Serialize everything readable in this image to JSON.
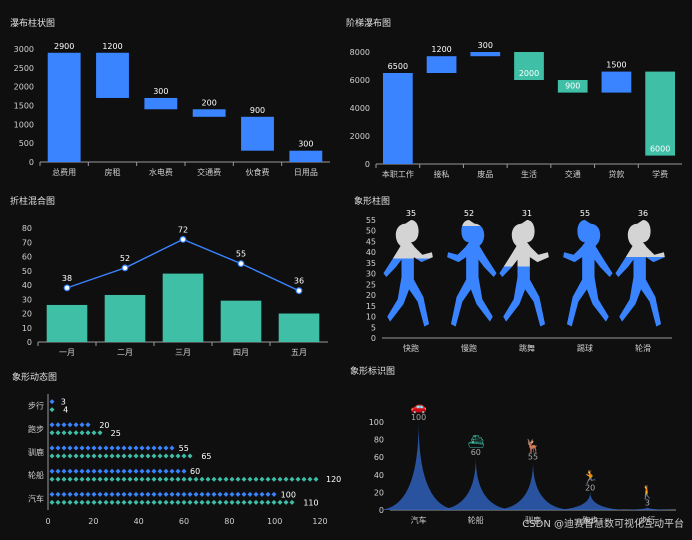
{
  "watermark": "CSDN @迪赛智慧数可视化互动平台",
  "chart_data": [
    {
      "type": "bar",
      "title": "瀑布柱状图",
      "categories": [
        "总费用",
        "房租",
        "水电费",
        "交通费",
        "伙食费",
        "日用品"
      ],
      "values": [
        2900,
        1200,
        300,
        200,
        900,
        300
      ],
      "bases": [
        0,
        1700,
        1400,
        1200,
        300,
        0
      ],
      "ylim": [
        0,
        3000
      ],
      "yticks": [
        0,
        500,
        1000,
        1500,
        2000,
        2500,
        3000
      ],
      "color": "#3a84ff"
    },
    {
      "type": "bar",
      "title": "阶梯瀑布图",
      "categories": [
        "本职工作",
        "接私",
        "废品",
        "生活",
        "交通",
        "贷款",
        "学费"
      ],
      "values": [
        6500,
        1200,
        300,
        2000,
        900,
        1500,
        6000
      ],
      "bases": [
        0,
        6500,
        7700,
        6000,
        5100,
        5100,
        600
      ],
      "colors": [
        "#3a84ff",
        "#3a84ff",
        "#3a84ff",
        "#3fbfa6",
        "#3fbfa6",
        "#3a84ff",
        "#3fbfa6"
      ],
      "ylim": [
        0,
        8000
      ],
      "yticks": [
        0,
        2000,
        4000,
        6000,
        8000
      ]
    },
    {
      "type": "bar",
      "title": "折柱混合图",
      "categories": [
        "一月",
        "二月",
        "三月",
        "四月",
        "五月"
      ],
      "bar_values": [
        26,
        33,
        48,
        29,
        20
      ],
      "line_values": [
        38,
        52,
        72,
        55,
        36
      ],
      "ylim": [
        0,
        80
      ],
      "yticks": [
        0,
        10,
        20,
        30,
        40,
        50,
        60,
        70,
        80
      ],
      "bar_color": "#3fbfa6",
      "line_color": "#3a84ff"
    },
    {
      "type": "bar",
      "title": "象形柱图",
      "categories": [
        "快跑",
        "慢跑",
        "跳舞",
        "踢球",
        "轮滑"
      ],
      "values": [
        35,
        52,
        31,
        55,
        36
      ],
      "ylim": [
        0,
        55
      ],
      "yticks": [
        0,
        5,
        10,
        15,
        20,
        25,
        30,
        35,
        40,
        45,
        50,
        55
      ],
      "fill_color": "#3a84ff",
      "empty_color": "#d4d4d4"
    },
    {
      "type": "bar",
      "title": "象形动态图",
      "categories": [
        "汽车",
        "轮船",
        "驯鹿",
        "跑步",
        "步行"
      ],
      "series": [
        {
          "values": [
            100,
            60,
            55,
            20,
            3
          ],
          "color": "#3a84ff"
        },
        {
          "values": [
            110,
            120,
            65,
            25,
            4
          ],
          "color": "#3fbfa6"
        }
      ],
      "xlim": [
        0,
        120
      ],
      "xticks": [
        0,
        20,
        40,
        60,
        80,
        100,
        120
      ]
    },
    {
      "type": "area",
      "title": "象形标识图",
      "categories": [
        "汽车",
        "轮船",
        "驯鹿",
        "跑步",
        "步行"
      ],
      "values": [
        100,
        60,
        55,
        20,
        3
      ],
      "ylim": [
        0,
        100
      ],
      "yticks": [
        0,
        20,
        40,
        60,
        80,
        100
      ],
      "icons": [
        "car-icon",
        "ship-icon",
        "deer-icon",
        "run-icon",
        "walk-icon"
      ],
      "fill_color": "#2f5fb8",
      "icon_color": "#3fbfa6"
    }
  ]
}
